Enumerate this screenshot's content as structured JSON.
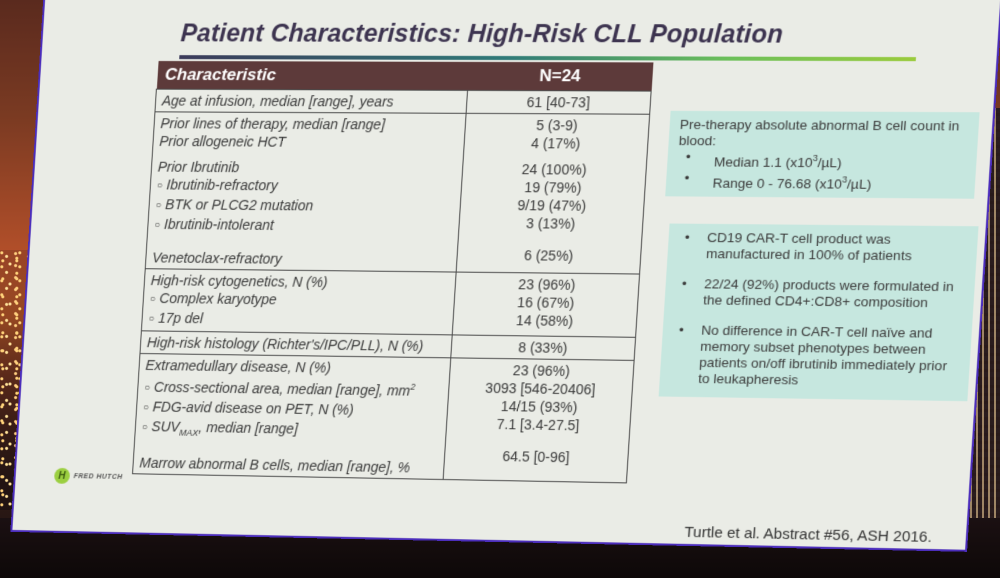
{
  "slide": {
    "title": "Patient Characteristics: High-Risk CLL Population",
    "table": {
      "headers": [
        "Characteristic",
        "N=24"
      ],
      "rows": [
        {
          "labels": [
            "Age at infusion, median [range], years"
          ],
          "values": [
            "61 [40-73]"
          ]
        },
        {
          "labels": [
            "Prior lines of therapy, median [range]",
            "Prior allogeneic HCT",
            "Prior Ibrutinib",
            "Ibrutinib-refractory",
            "BTK or PLCG2 mutation",
            "Ibrutinib-intolerant",
            "Venetoclax-refractory"
          ],
          "values": [
            "5 (3-9)",
            "4 (17%)",
            "24 (100%)",
            "19 (79%)",
            "9/19 (47%)",
            "3 (13%)",
            "6 (25%)"
          ]
        },
        {
          "labels": [
            "High-risk cytogenetics, N (%)",
            "Complex karyotype",
            "17p del"
          ],
          "values": [
            "23 (96%)",
            "16 (67%)",
            "14 (58%)"
          ]
        },
        {
          "labels": [
            "High-risk histology (Richter's/IPC/PLL), N (%)"
          ],
          "values": [
            "8 (33%)"
          ]
        },
        {
          "labels": [
            "Extramedullary disease, N (%)",
            "Cross-sectional area, median [range], mm",
            "FDG-avid disease on PET, N (%)",
            "SUV",
            "Marrow abnormal B cells, median [range], %"
          ],
          "label_suffixes": {
            "mm_sup": "2",
            "suv_sub": "MAX",
            "suv_rest": ", median [range]"
          },
          "values": [
            "23 (96%)",
            "3093 [546-20406]",
            "14/15 (93%)",
            "7.1 [3.4-27.5]",
            "64.5 [0-96]"
          ]
        }
      ]
    },
    "box1": {
      "heading": "Pre-therapy absolute abnormal B cell count in blood:",
      "bullets": [
        "Median 1.1 (x10",
        "Range 0 - 76.68 (x10"
      ],
      "unit_sup": "3",
      "unit_rest": "/µL)"
    },
    "box2": {
      "bullets": [
        "CD19 CAR-T cell product was manufactured in 100% of patients",
        "22/24 (92%) products were formulated in the defined CD4+:CD8+ composition",
        "No difference in CAR-T cell naïve and memory subset phenotypes between patients on/off ibrutinib immediately prior to leukapheresis"
      ]
    },
    "logo_text": "FRED HUTCH",
    "logo_mark": "H",
    "citation": "Turtle et al. Abstract #56, ASH 2016.",
    "colors": {
      "header_bg": "#5d3a3a",
      "box_bg": "#c6e7df",
      "title_color": "#3d3450",
      "rule_start": "#3b3a5a",
      "rule_end": "#9acb3c"
    }
  }
}
